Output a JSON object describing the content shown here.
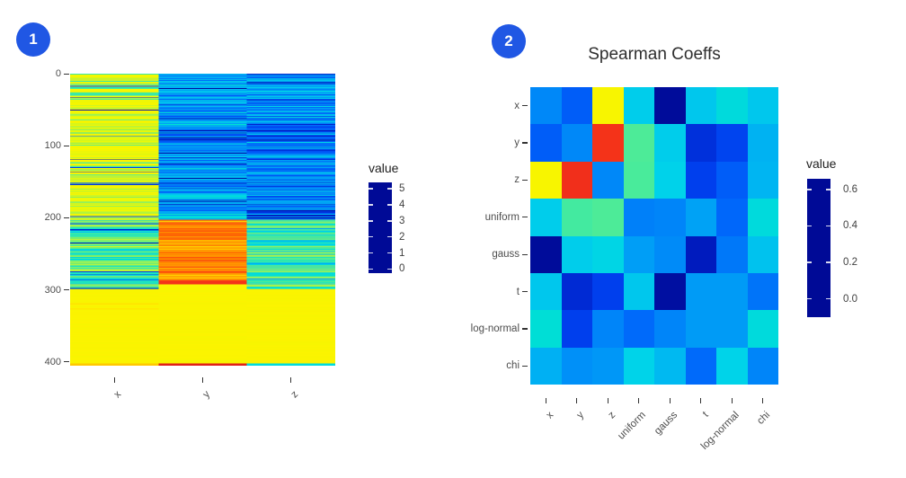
{
  "panels": [
    {
      "badge": "1"
    },
    {
      "badge": "2"
    }
  ],
  "colors": {
    "badge_blue": "#2057e4",
    "axis_text": "#4d4d4d",
    "tick_mark": "#333333",
    "title_text": "#2e2e2e",
    "background": "#ffffff"
  },
  "colormap_stops": [
    [
      0.0,
      "#000a96"
    ],
    [
      0.03,
      "#0020c8"
    ],
    [
      0.06,
      "#0040ee"
    ],
    [
      0.09,
      "#0064fa"
    ],
    [
      0.125,
      "#0090f8"
    ],
    [
      0.16,
      "#00b4f2"
    ],
    [
      0.19,
      "#00d2ea"
    ],
    [
      0.215,
      "#00e0d2"
    ],
    [
      0.245,
      "#30e8ae"
    ],
    [
      0.28,
      "#66ee86"
    ],
    [
      0.32,
      "#a0f254"
    ],
    [
      0.37,
      "#d2f61e"
    ],
    [
      0.43,
      "#f2f800"
    ],
    [
      0.52,
      "#fef200"
    ],
    [
      0.6,
      "#ffdf00"
    ],
    [
      0.67,
      "#ffc200"
    ],
    [
      0.74,
      "#ff9c00"
    ],
    [
      0.81,
      "#ff6a00"
    ],
    [
      0.88,
      "#fa3c14"
    ],
    [
      0.94,
      "#ee2a1e"
    ],
    [
      1.0,
      "#cc1410"
    ]
  ],
  "chart_data": [
    {
      "id": "stacked-samples-heatmap",
      "type": "heatmap",
      "title": "",
      "columns": [
        "x",
        "y",
        "z"
      ],
      "n_rows": 406,
      "y_axis_ticks": [
        0,
        100,
        200,
        300,
        400
      ],
      "legend_title": "value",
      "legend_ticks": [
        {
          "label": "5",
          "value": 5
        },
        {
          "label": "4",
          "value": 4
        },
        {
          "label": "3",
          "value": 3
        },
        {
          "label": "2",
          "value": 2
        },
        {
          "label": "1",
          "value": 1
        },
        {
          "label": "0",
          "value": 0
        }
      ],
      "vmin": -0.26,
      "vmax": 5.4,
      "seed": 1337,
      "row_segments": {
        "x": [
          {
            "to": 202,
            "mix": [
              [
                0.07,
                -0.2,
                0.3
              ],
              [
                0.28,
                1.05,
                1.65
              ],
              [
                1,
                1.8,
                2.65
              ]
            ]
          },
          {
            "to": 299,
            "mix": [
              [
                0.05,
                -0.2,
                0.1
              ],
              [
                0.45,
                0.75,
                1.1
              ],
              [
                0.85,
                1.1,
                1.6
              ],
              [
                1,
                1.6,
                2.0
              ]
            ]
          },
          {
            "to": 318,
            "mix": [
              [
                1,
                2.42,
                2.62
              ]
            ]
          },
          {
            "to": 320,
            "const": 3.05
          },
          {
            "to": 325,
            "mix": [
              [
                1,
                2.42,
                2.62
              ]
            ]
          },
          {
            "to": 327,
            "const": 2.95
          },
          {
            "to": 402,
            "mix": [
              [
                1,
                2.42,
                2.62
              ]
            ]
          },
          {
            "to": 405,
            "const": 3.45
          }
        ],
        "y": [
          {
            "to": 202,
            "mix": [
              [
                0.08,
                -0.22,
                -0.05
              ],
              [
                0.5,
                0.15,
                0.5
              ],
              [
                1,
                0.5,
                0.98
              ]
            ]
          },
          {
            "to": 287,
            "mix": [
              [
                0.25,
                3.3,
                3.7
              ],
              [
                0.8,
                3.8,
                4.4
              ],
              [
                1,
                4.4,
                4.8
              ]
            ]
          },
          {
            "to": 292,
            "const": 4.9
          },
          {
            "to": 402,
            "mix": [
              [
                1,
                2.42,
                2.6
              ]
            ]
          },
          {
            "to": 405,
            "const": 5.2
          }
        ],
        "z": [
          {
            "to": 69,
            "mix": [
              [
                0.1,
                -0.22,
                -0.05
              ],
              [
                0.6,
                0.1,
                0.45
              ],
              [
                1,
                0.5,
                0.9
              ]
            ]
          },
          {
            "to": 92,
            "mix": [
              [
                0.15,
                -0.22,
                -0.05
              ],
              [
                0.8,
                0.08,
                0.4
              ],
              [
                1,
                0.5,
                0.8
              ]
            ]
          },
          {
            "to": 202,
            "mix": [
              [
                0.1,
                -0.22,
                -0.05
              ],
              [
                0.6,
                0.1,
                0.45
              ],
              [
                1,
                0.5,
                0.9
              ]
            ]
          },
          {
            "to": 299,
            "mix": [
              [
                0.1,
                0.5,
                0.7
              ],
              [
                0.5,
                0.75,
                1.1
              ],
              [
                1,
                1.1,
                1.7
              ]
            ]
          },
          {
            "to": 402,
            "mix": [
              [
                1,
                2.42,
                2.62
              ]
            ]
          },
          {
            "to": 405,
            "const": 0.9
          }
        ]
      }
    },
    {
      "id": "spearman-coeffs-heatmap",
      "type": "heatmap",
      "title": "Spearman Coeffs",
      "categories": [
        "x",
        "y",
        "z",
        "uniform",
        "gauss",
        "t",
        "log-normal",
        "chi"
      ],
      "legend_title": "value",
      "legend_ticks": [
        {
          "label": "0.6",
          "value": 0.6
        },
        {
          "label": "0.4",
          "value": 0.4
        },
        {
          "label": "0.2",
          "value": 0.2
        },
        {
          "label": "0.0",
          "value": 0.0
        }
      ],
      "vmin": -0.1,
      "vmax": 0.658,
      "matrix": [
        [
          -0.01,
          -0.036,
          0.26,
          0.04,
          -0.098,
          0.036,
          0.055,
          0.036
        ],
        [
          -0.036,
          -0.01,
          0.59,
          0.1,
          0.04,
          -0.066,
          -0.052,
          0.02
        ],
        [
          0.26,
          0.6,
          -0.01,
          0.098,
          0.044,
          -0.055,
          -0.036,
          0.022
        ],
        [
          0.04,
          0.095,
          0.1,
          -0.015,
          -0.012,
          0.008,
          -0.03,
          0.055
        ],
        [
          -0.098,
          0.04,
          0.048,
          0.005,
          -0.008,
          -0.082,
          -0.02,
          0.032
        ],
        [
          0.036,
          -0.07,
          -0.055,
          0.036,
          -0.095,
          0.003,
          0.003,
          -0.022
        ],
        [
          0.06,
          -0.055,
          -0.012,
          -0.028,
          -0.012,
          0.003,
          0.003,
          0.055
        ],
        [
          0.018,
          -0.005,
          0.0,
          0.045,
          0.025,
          -0.028,
          0.045,
          -0.012
        ]
      ]
    }
  ]
}
